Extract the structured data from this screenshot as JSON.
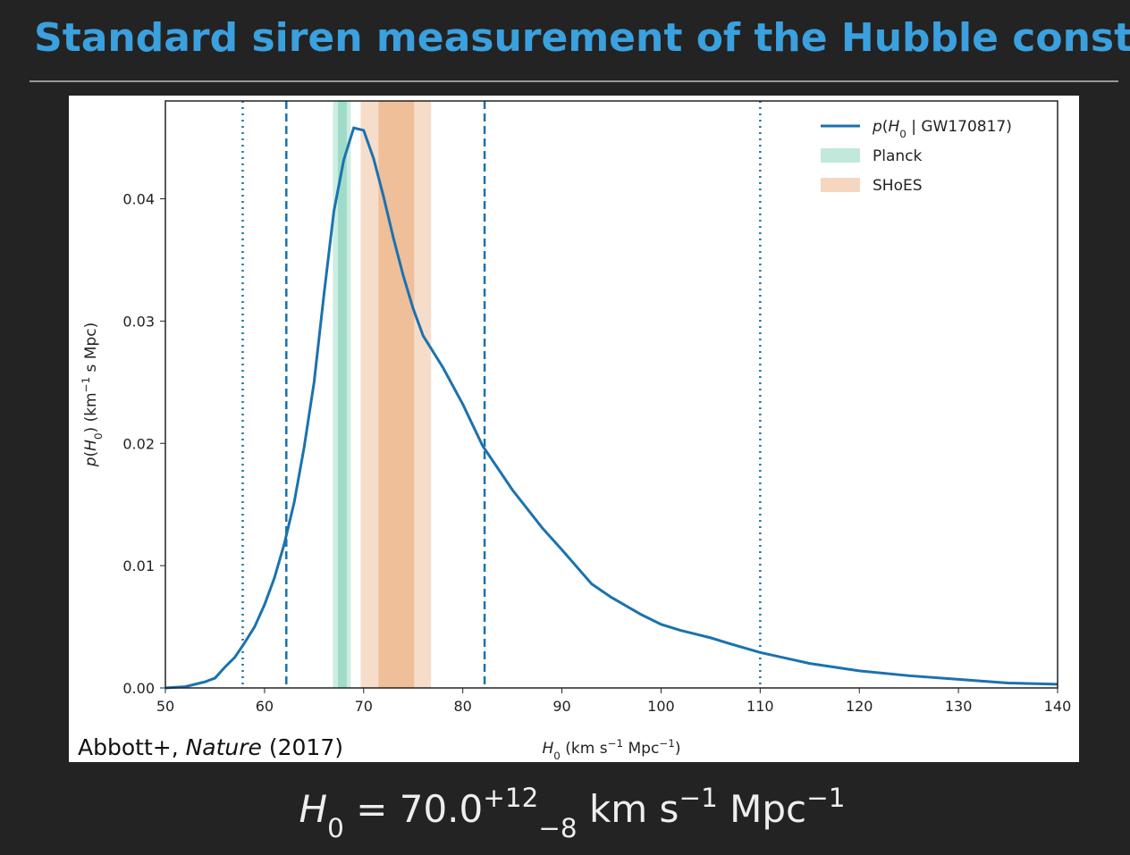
{
  "title": "Standard siren measurement of the Hubble constant",
  "chart_data": {
    "type": "line",
    "series": [
      {
        "name": [
          {
            "t": "p",
            "s": "i"
          },
          {
            "t": "(",
            "s": "n"
          },
          {
            "t": "H",
            "s": "i"
          },
          {
            "t": "0",
            "s": "sub"
          },
          {
            "t": " | GW170817)",
            "s": "n"
          }
        ],
        "color": "#1a72b0",
        "x": [
          50,
          52,
          54,
          55,
          56,
          57,
          58,
          59,
          60,
          61,
          62,
          63,
          64,
          65,
          66,
          67,
          68,
          69,
          70,
          71,
          72,
          73,
          74,
          75,
          76,
          78,
          80,
          82,
          85,
          88,
          90,
          93,
          95,
          98,
          100,
          102,
          105,
          107,
          110,
          115,
          120,
          125,
          130,
          135,
          140
        ],
        "values": [
          0,
          0.0001,
          0.0005,
          0.0008,
          0.0017,
          0.0025,
          0.0037,
          0.005,
          0.0068,
          0.009,
          0.0118,
          0.0152,
          0.0197,
          0.025,
          0.0322,
          0.039,
          0.0432,
          0.0458,
          0.0456,
          0.0433,
          0.0402,
          0.0368,
          0.0337,
          0.031,
          0.0288,
          0.0262,
          0.0232,
          0.0198,
          0.0162,
          0.0131,
          0.0113,
          0.0085,
          0.0074,
          0.006,
          0.0052,
          0.0047,
          0.0041,
          0.0036,
          0.0029,
          0.002,
          0.0014,
          0.001,
          0.0007,
          0.0004,
          0.0003
        ]
      }
    ],
    "bands": [
      {
        "name": "Planck",
        "color": "#8fd6bd",
        "ranges": [
          [
            66.9,
            68.7
          ],
          [
            67.4,
            68.3
          ]
        ]
      },
      {
        "name": "SHoES",
        "color": "#ecb489",
        "ranges": [
          [
            69.7,
            76.8
          ],
          [
            71.5,
            75.1
          ]
        ]
      }
    ],
    "vlines": [
      {
        "x": 57.8,
        "style": "dotted"
      },
      {
        "x": 62.2,
        "style": "dashed"
      },
      {
        "x": 82.2,
        "style": "dashed"
      },
      {
        "x": 110,
        "style": "dotted"
      }
    ],
    "xlim": [
      50,
      140
    ],
    "ylim": [
      0,
      0.048
    ],
    "xticks": [
      50,
      60,
      70,
      80,
      90,
      100,
      110,
      120,
      130,
      140
    ],
    "yticks": [
      {
        "value": 0,
        "label": "0.00"
      },
      0.01,
      0.02,
      0.03,
      0.04
    ],
    "xlabel": [
      {
        "t": "H",
        "s": "i"
      },
      {
        "t": "0",
        "s": "sub"
      },
      {
        "t": " (km s",
        "s": "n"
      },
      {
        "t": "−1",
        "s": "sup"
      },
      {
        "t": " Mpc",
        "s": "n"
      },
      {
        "t": "−1",
        "s": "sup"
      },
      {
        "t": ")",
        "s": "n"
      }
    ],
    "ylabel": [
      {
        "t": "p",
        "s": "i"
      },
      {
        "t": "(",
        "s": "n"
      },
      {
        "t": "H",
        "s": "i"
      },
      {
        "t": "0",
        "s": "sub"
      },
      {
        "t": ") (km",
        "s": "n"
      },
      {
        "t": "−1",
        "s": "sup"
      },
      {
        "t": " s Mpc)",
        "s": "n"
      }
    ],
    "legend": "upper right",
    "citation": [
      {
        "t": "Abbott+, ",
        "s": "n"
      },
      {
        "t": "Nature",
        "s": "i"
      },
      {
        "t": " (2017)",
        "s": "n"
      }
    ]
  },
  "formula": [
    {
      "t": "H",
      "s": "i"
    },
    {
      "t": "0",
      "s": "sub"
    },
    {
      "t": " = 70.0",
      "s": "n"
    },
    {
      "t": "+12",
      "s": "sup"
    },
    {
      "t": "−8",
      "s": "sub"
    },
    {
      "t": " km s",
      "s": "n"
    },
    {
      "t": "−1",
      "s": "sup"
    },
    {
      "t": " Mpc",
      "s": "n"
    },
    {
      "t": "−1",
      "s": "sup"
    }
  ]
}
